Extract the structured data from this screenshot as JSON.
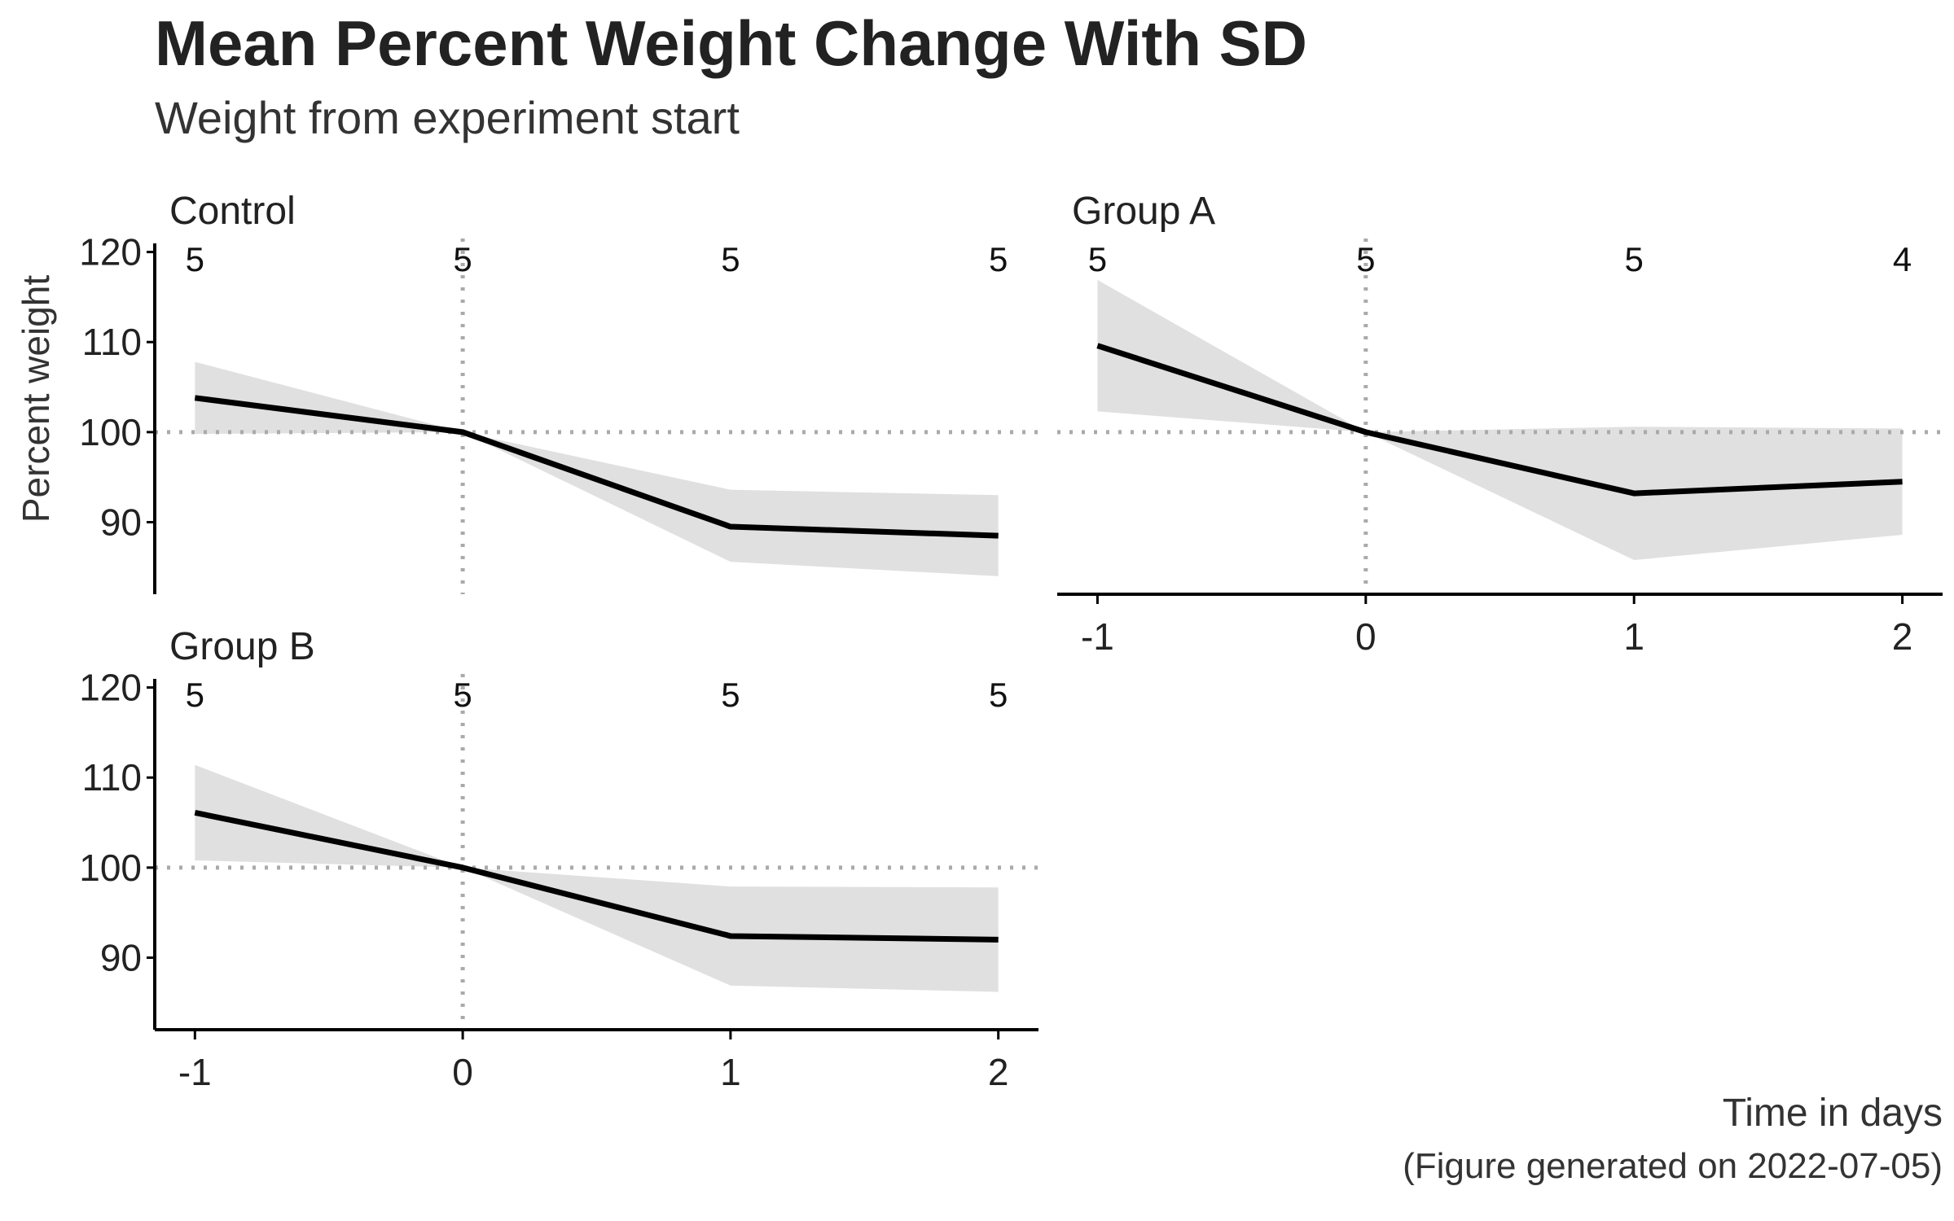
{
  "chart_data": {
    "type": "line",
    "title": "Mean Percent Weight Change With SD",
    "subtitle": "Weight from experiment start",
    "xlabel": "Time in days",
    "ylabel": "Percent weight",
    "caption": "(Figure generated on 2022-07-05)",
    "x": [
      -1,
      0,
      1,
      2
    ],
    "x_ticks": [
      "-1",
      "0",
      "1",
      "2"
    ],
    "y_ticks": [
      90,
      100,
      110,
      120
    ],
    "ylim": [
      82,
      121.5
    ],
    "xlim": [
      -1.15,
      2.15
    ],
    "reference_lines": {
      "y": 100,
      "x": 0
    },
    "ribbon": "mean ± SD",
    "colors": {
      "line": "#000000",
      "ribbon": "#e0e0e0",
      "reference": "#aaaaaa",
      "axis": "#000000"
    },
    "grid": false,
    "panels": [
      {
        "name": "Control",
        "mean": [
          103.8,
          100.0,
          89.5,
          88.5
        ],
        "lower": [
          99.8,
          100.0,
          85.6,
          84.0
        ],
        "upper": [
          107.8,
          100.0,
          93.6,
          93.0
        ],
        "n": [
          "5",
          "5",
          "5",
          "5"
        ]
      },
      {
        "name": "Group A",
        "mean": [
          109.6,
          100.0,
          93.2,
          94.5
        ],
        "lower": [
          102.3,
          100.0,
          85.8,
          88.6
        ],
        "upper": [
          116.9,
          100.0,
          100.6,
          100.4
        ],
        "n": [
          "5",
          "5",
          "5",
          "4"
        ]
      },
      {
        "name": "Group B",
        "mean": [
          106.1,
          100.0,
          92.4,
          92.0
        ],
        "lower": [
          100.8,
          100.0,
          86.9,
          86.2
        ],
        "upper": [
          111.4,
          100.0,
          97.9,
          97.8
        ],
        "n": [
          "5",
          "5",
          "5",
          "5"
        ]
      }
    ]
  }
}
